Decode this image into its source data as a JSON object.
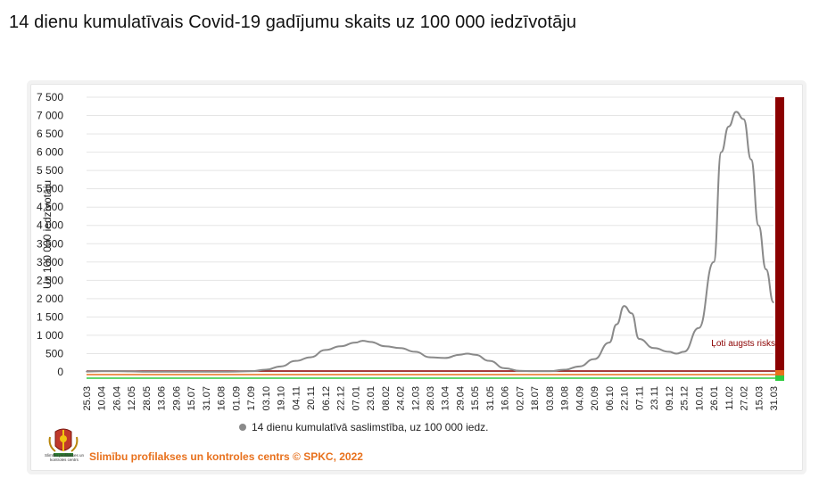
{
  "page": {
    "title": "14 dienu kumulatīvais Covid-19 gadījumu skaits uz 100 000 iedzīvotāju"
  },
  "colors": {
    "line": "#8a8a8a",
    "very_high_risk": "#8b0000",
    "high_risk": "#e8711d",
    "low_risk": "#2ecc40",
    "footer": "#e8711d",
    "grid": "#e5e5e5"
  },
  "footer": {
    "org_short": "Slimību profilakses un kontroles centrs",
    "credit": "Slimību profilakses un kontroles centrs © SPKC, 2022",
    "logo_icon": "latvia-coat-of-arms-icon"
  },
  "chart_data": {
    "type": "line",
    "title": "",
    "ylabel": "Uz 100 000 iedzīvotāju",
    "xlabel": "",
    "ylim": [
      0,
      7500
    ],
    "yticks": [
      0,
      500,
      1000,
      1500,
      2000,
      2500,
      3000,
      3500,
      4000,
      4500,
      5000,
      5500,
      6000,
      6500,
      7000,
      7500
    ],
    "ytick_labels": [
      "0",
      "500",
      "1 000",
      "1 500",
      "2 000",
      "2 500",
      "3 000",
      "3 500",
      "4 000",
      "4 500",
      "5 000",
      "5 500",
      "6 000",
      "6 500",
      "7 000",
      "7 500"
    ],
    "grid": true,
    "legend_position": "bottom",
    "x_labels": [
      "25.03",
      "10.04",
      "26.04",
      "12.05",
      "28.05",
      "13.06",
      "29.06",
      "15.07",
      "31.07",
      "16.08",
      "01.09",
      "17.09",
      "03.10",
      "19.10",
      "04.11",
      "20.11",
      "06.12",
      "22.12",
      "07.01",
      "23.01",
      "08.02",
      "24.02",
      "12.03",
      "28.03",
      "13.04",
      "29.04",
      "15.05",
      "31.05",
      "16.06",
      "02.07",
      "18.07",
      "03.08",
      "19.08",
      "04.09",
      "20.09",
      "06.10",
      "22.10",
      "07.11",
      "23.11",
      "09.12",
      "25.12",
      "10.01",
      "26.01",
      "11.02",
      "27.02",
      "15.03",
      "31.03"
    ],
    "series": [
      {
        "name": "14 dienu kumulatīvā saslimstība, uz 100 000 iedz.",
        "x": [
          "25.03",
          "10.04",
          "26.04",
          "12.05",
          "28.05",
          "13.06",
          "29.06",
          "15.07",
          "31.07",
          "16.08",
          "01.09",
          "17.09",
          "03.10",
          "19.10",
          "04.11",
          "20.11",
          "06.12",
          "22.12",
          "07.01",
          "15.01",
          "23.01",
          "08.02",
          "24.02",
          "12.03",
          "28.03",
          "13.04",
          "29.04",
          "07.05",
          "15.05",
          "31.05",
          "16.06",
          "02.07",
          "18.07",
          "03.08",
          "19.08",
          "04.09",
          "20.09",
          "06.10",
          "14.10",
          "22.10",
          "30.10",
          "07.11",
          "23.11",
          "09.12",
          "17.12",
          "25.12",
          "10.01",
          "26.01",
          "03.02",
          "11.02",
          "19.02",
          "27.02",
          "07.03",
          "15.03",
          "23.03",
          "31.03"
        ],
        "values": [
          10,
          20,
          20,
          15,
          5,
          5,
          5,
          5,
          5,
          5,
          10,
          20,
          60,
          150,
          300,
          400,
          600,
          700,
          800,
          850,
          820,
          700,
          650,
          550,
          400,
          380,
          470,
          500,
          470,
          300,
          100,
          30,
          20,
          20,
          60,
          150,
          350,
          800,
          1300,
          1800,
          1600,
          900,
          650,
          550,
          500,
          550,
          1200,
          3000,
          6000,
          6700,
          7100,
          6900,
          5800,
          4000,
          2800,
          1900
        ]
      }
    ],
    "annotations": [
      {
        "text": "Ļoti augsts risks"
      }
    ]
  }
}
